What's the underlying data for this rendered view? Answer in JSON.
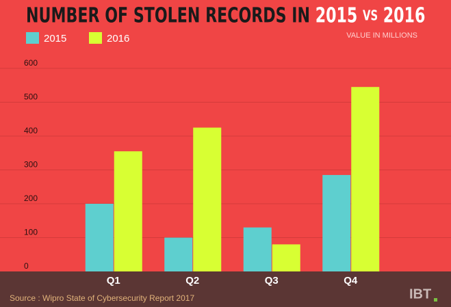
{
  "chart_data": {
    "type": "bar",
    "title_parts": [
      "NUMBER OF STOLEN RECORDS IN",
      "2015",
      "VS",
      "2016"
    ],
    "subtitle": "VALUE IN MILLIONS",
    "categories": [
      "Q1",
      "Q2",
      "Q3",
      "Q4"
    ],
    "series": [
      {
        "name": "2015",
        "color": "#5ecfcf",
        "values": [
          200,
          100,
          130,
          285
        ]
      },
      {
        "name": "2016",
        "color": "#d8ff33",
        "values": [
          355,
          425,
          80,
          545
        ]
      }
    ],
    "ylim": [
      0,
      600
    ],
    "yticks": [
      0,
      100,
      200,
      300,
      400,
      500,
      600
    ],
    "grid": true,
    "source": "Source : Wipro State of Cybersecurity Report 2017",
    "logo": "IBT"
  }
}
